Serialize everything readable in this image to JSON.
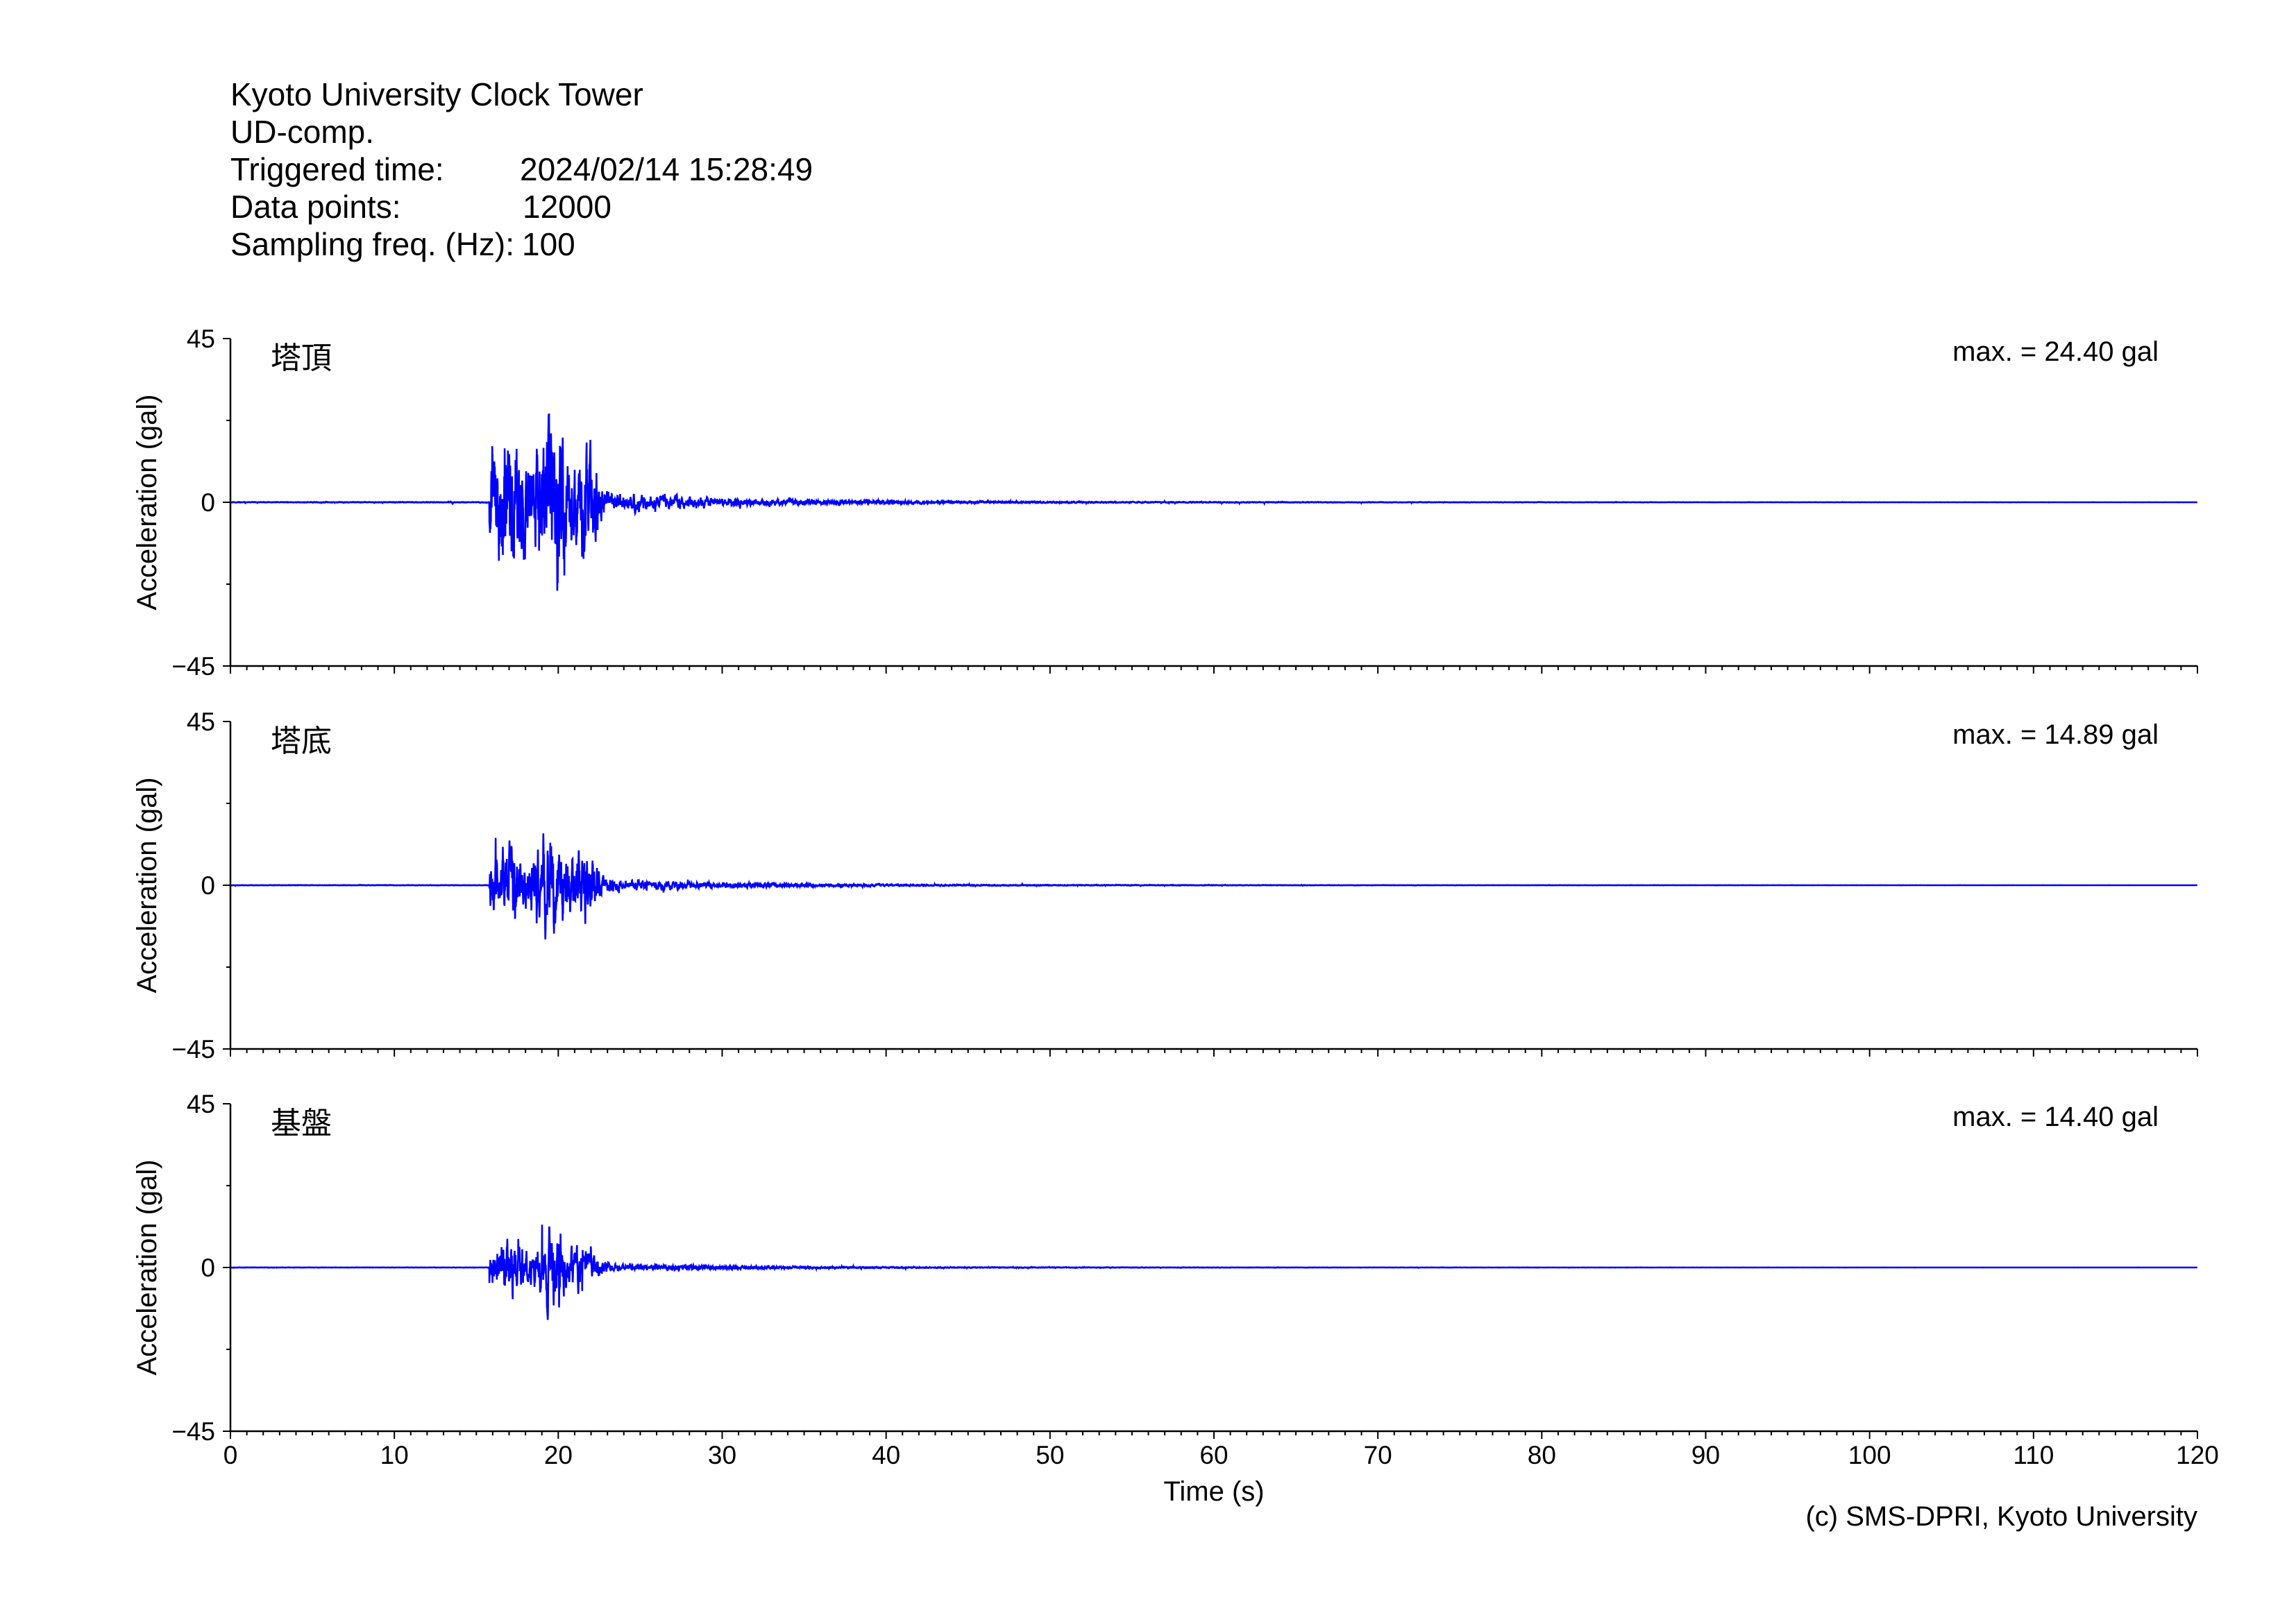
{
  "header": {
    "site": "Kyoto University Clock Tower",
    "component": "UD-comp.",
    "triggered_label": "Triggered time:",
    "triggered_value": "2024/02/14 15:28:49",
    "points_label": "Data points:",
    "points_value": "12000",
    "freq_label": "Sampling freq. (Hz):",
    "freq_value": "100"
  },
  "copyright": "(c) SMS-DPRI, Kyoto University",
  "colors": {
    "trace": "#0000ff",
    "axis": "#000000"
  },
  "chart_data": {
    "type": "line",
    "xlabel": "Time (s)",
    "ylabel": "Acceleration (gal)",
    "xlim": [
      0,
      120
    ],
    "ylim": [
      -45,
      45
    ],
    "x_ticks": [
      "0",
      "10",
      "20",
      "30",
      "40",
      "50",
      "60",
      "70",
      "80",
      "90",
      "100",
      "110",
      "120"
    ],
    "y_ticks": [
      "45",
      "0",
      "−45"
    ],
    "onset_s": 15.8,
    "series": [
      {
        "name": "塔頂",
        "max_label": "max. = 24.40 gal",
        "max_gal": 24.4,
        "seed": 11
      },
      {
        "name": "塔底",
        "max_label": "max. = 14.89 gal",
        "max_gal": 14.89,
        "seed": 23
      },
      {
        "name": "基盤",
        "max_label": "max. = 14.40 gal",
        "max_gal": 14.4,
        "seed": 37
      }
    ]
  }
}
